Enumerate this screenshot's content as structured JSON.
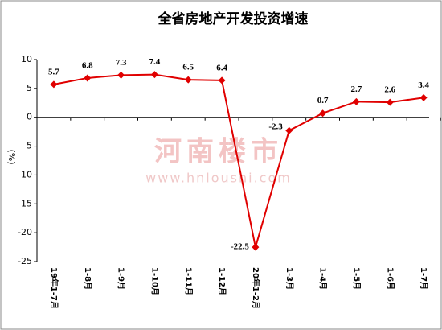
{
  "chart_data": {
    "type": "line",
    "title": "全省房地产开发投资增速",
    "y_label": "(%)",
    "watermark": [
      "河南楼市",
      "www.hnloushi.com"
    ],
    "categories": [
      "19年1-7月",
      "1-8月",
      "1-9月",
      "1-10月",
      "1-11月",
      "1-12月",
      "20年1-2月",
      "1-3月",
      "1-4月",
      "1-5月",
      "1-6月",
      "1-7月"
    ],
    "series": [
      {
        "name": "全省房地产开发投资增速",
        "color": "#e00000",
        "values": [
          5.7,
          6.8,
          7.3,
          7.4,
          6.5,
          6.4,
          -22.5,
          -2.3,
          0.7,
          2.7,
          2.6,
          3.4
        ]
      }
    ],
    "ylim": [
      -25,
      10
    ],
    "yticks": [
      -25,
      -20,
      -15,
      -10,
      -5,
      0,
      5,
      10
    ],
    "grid": false,
    "legend": false
  }
}
